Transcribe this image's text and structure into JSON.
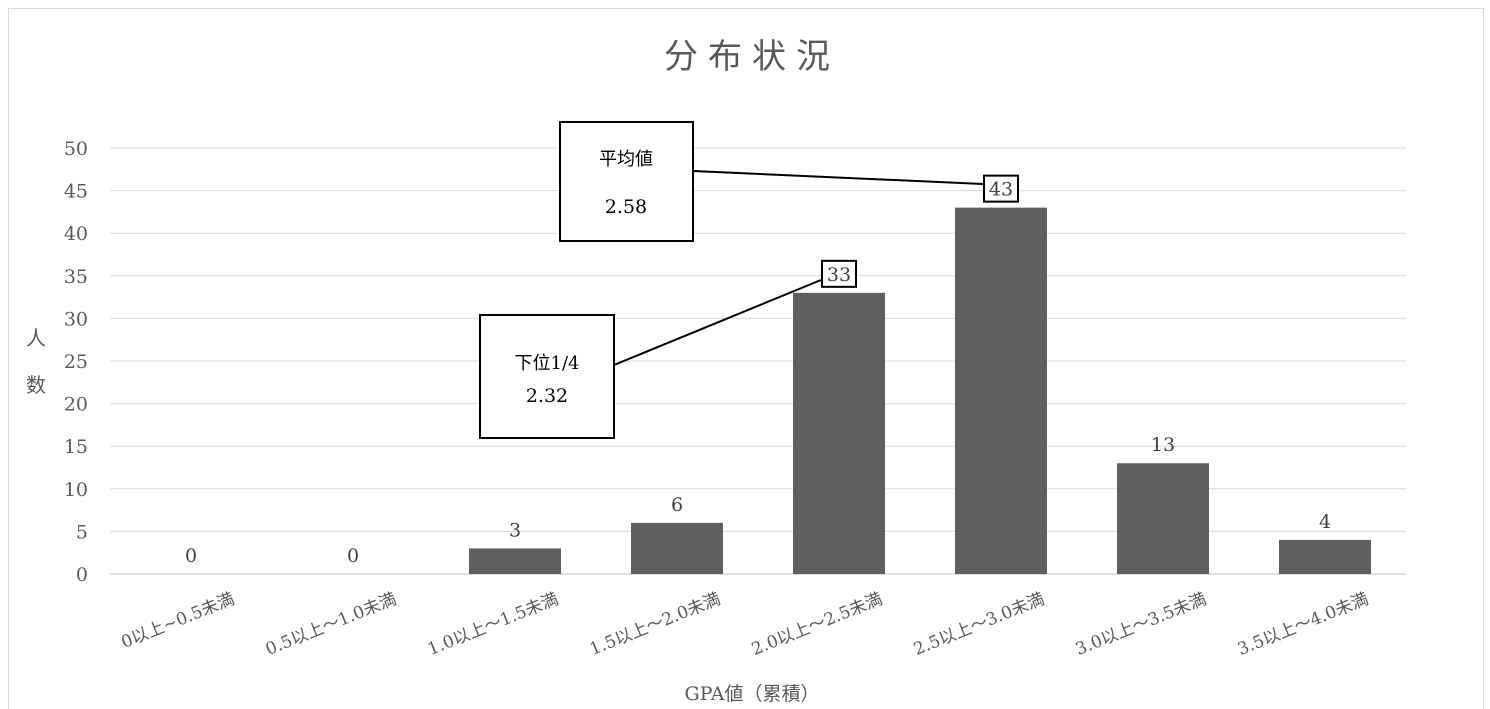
{
  "chart_data": {
    "type": "bar",
    "title": "分布状況",
    "xlabel": "GPA値（累積）",
    "ylabel": "人数",
    "categories": [
      "0以上~0.5未満",
      "0.5以上～1.0未満",
      "1.0以上～1.5未満",
      "1.5以上～2.0未満",
      "2.0以上～2.5未満",
      "2.5以上～3.0未満",
      "3.0以上～3.5未満",
      "3.5以上～4.0未満"
    ],
    "values": [
      0,
      0,
      3,
      6,
      33,
      43,
      13,
      4
    ],
    "value_labels": [
      "0",
      "0",
      "3",
      "6",
      "33",
      "43",
      "13",
      "4"
    ],
    "ylim": [
      0,
      50
    ],
    "yticks": [
      "0",
      "5",
      "10",
      "15",
      "20",
      "25",
      "30",
      "35",
      "40",
      "45",
      "50"
    ],
    "grid": true,
    "bar_color": "#5f5f5f",
    "annotations": [
      {
        "label": "平均値",
        "value": "2.58",
        "points_to_category": "2.5以上～3.0未満"
      },
      {
        "label": "下位1/4",
        "value": "2.32",
        "points_to_category": "2.0以上～2.5未満"
      }
    ]
  }
}
